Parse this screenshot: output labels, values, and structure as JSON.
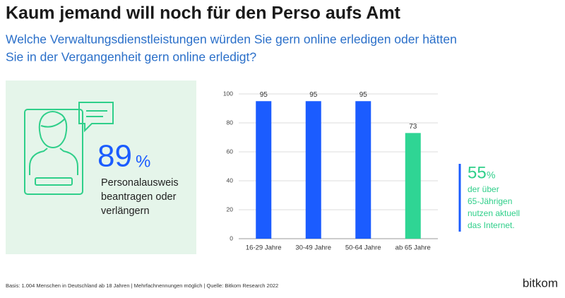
{
  "title": "Kaum jemand will noch für den Perso aufs Amt",
  "subtitle": [
    "Welche Verwaltungsdienstleistungen würden Sie gern online erledigen oder hätten",
    "Sie in der Vergangenheit gern online erledigt?"
  ],
  "left_panel": {
    "stat": "89",
    "stat_unit": "%",
    "lines": [
      "Personalausweis",
      "beantragen oder",
      "verlängern"
    ]
  },
  "chart_data": {
    "type": "bar",
    "categories": [
      "16-29 Jahre",
      "30-49 Jahre",
      "50-64 Jahre",
      "ab 65 Jahre"
    ],
    "values": [
      95,
      95,
      95,
      73
    ],
    "colors": [
      "#1b5cff",
      "#1b5cff",
      "#1b5cff",
      "#2fd594"
    ],
    "ylim": [
      0,
      100
    ],
    "yticks": [
      0,
      20,
      40,
      60,
      80,
      100
    ],
    "grid": true
  },
  "callout": {
    "stat": "55",
    "stat_unit": "%",
    "lines": [
      "der über",
      "65-Jährigen",
      "nutzen aktuell",
      "das Internet."
    ]
  },
  "footer": {
    "source": "Basis: 1.004 Menschen in Deutschland ab 18 Jahren | Mehrfachnennungen möglich | Quelle: Bitkom Research 2022",
    "logo": "bitkom"
  }
}
